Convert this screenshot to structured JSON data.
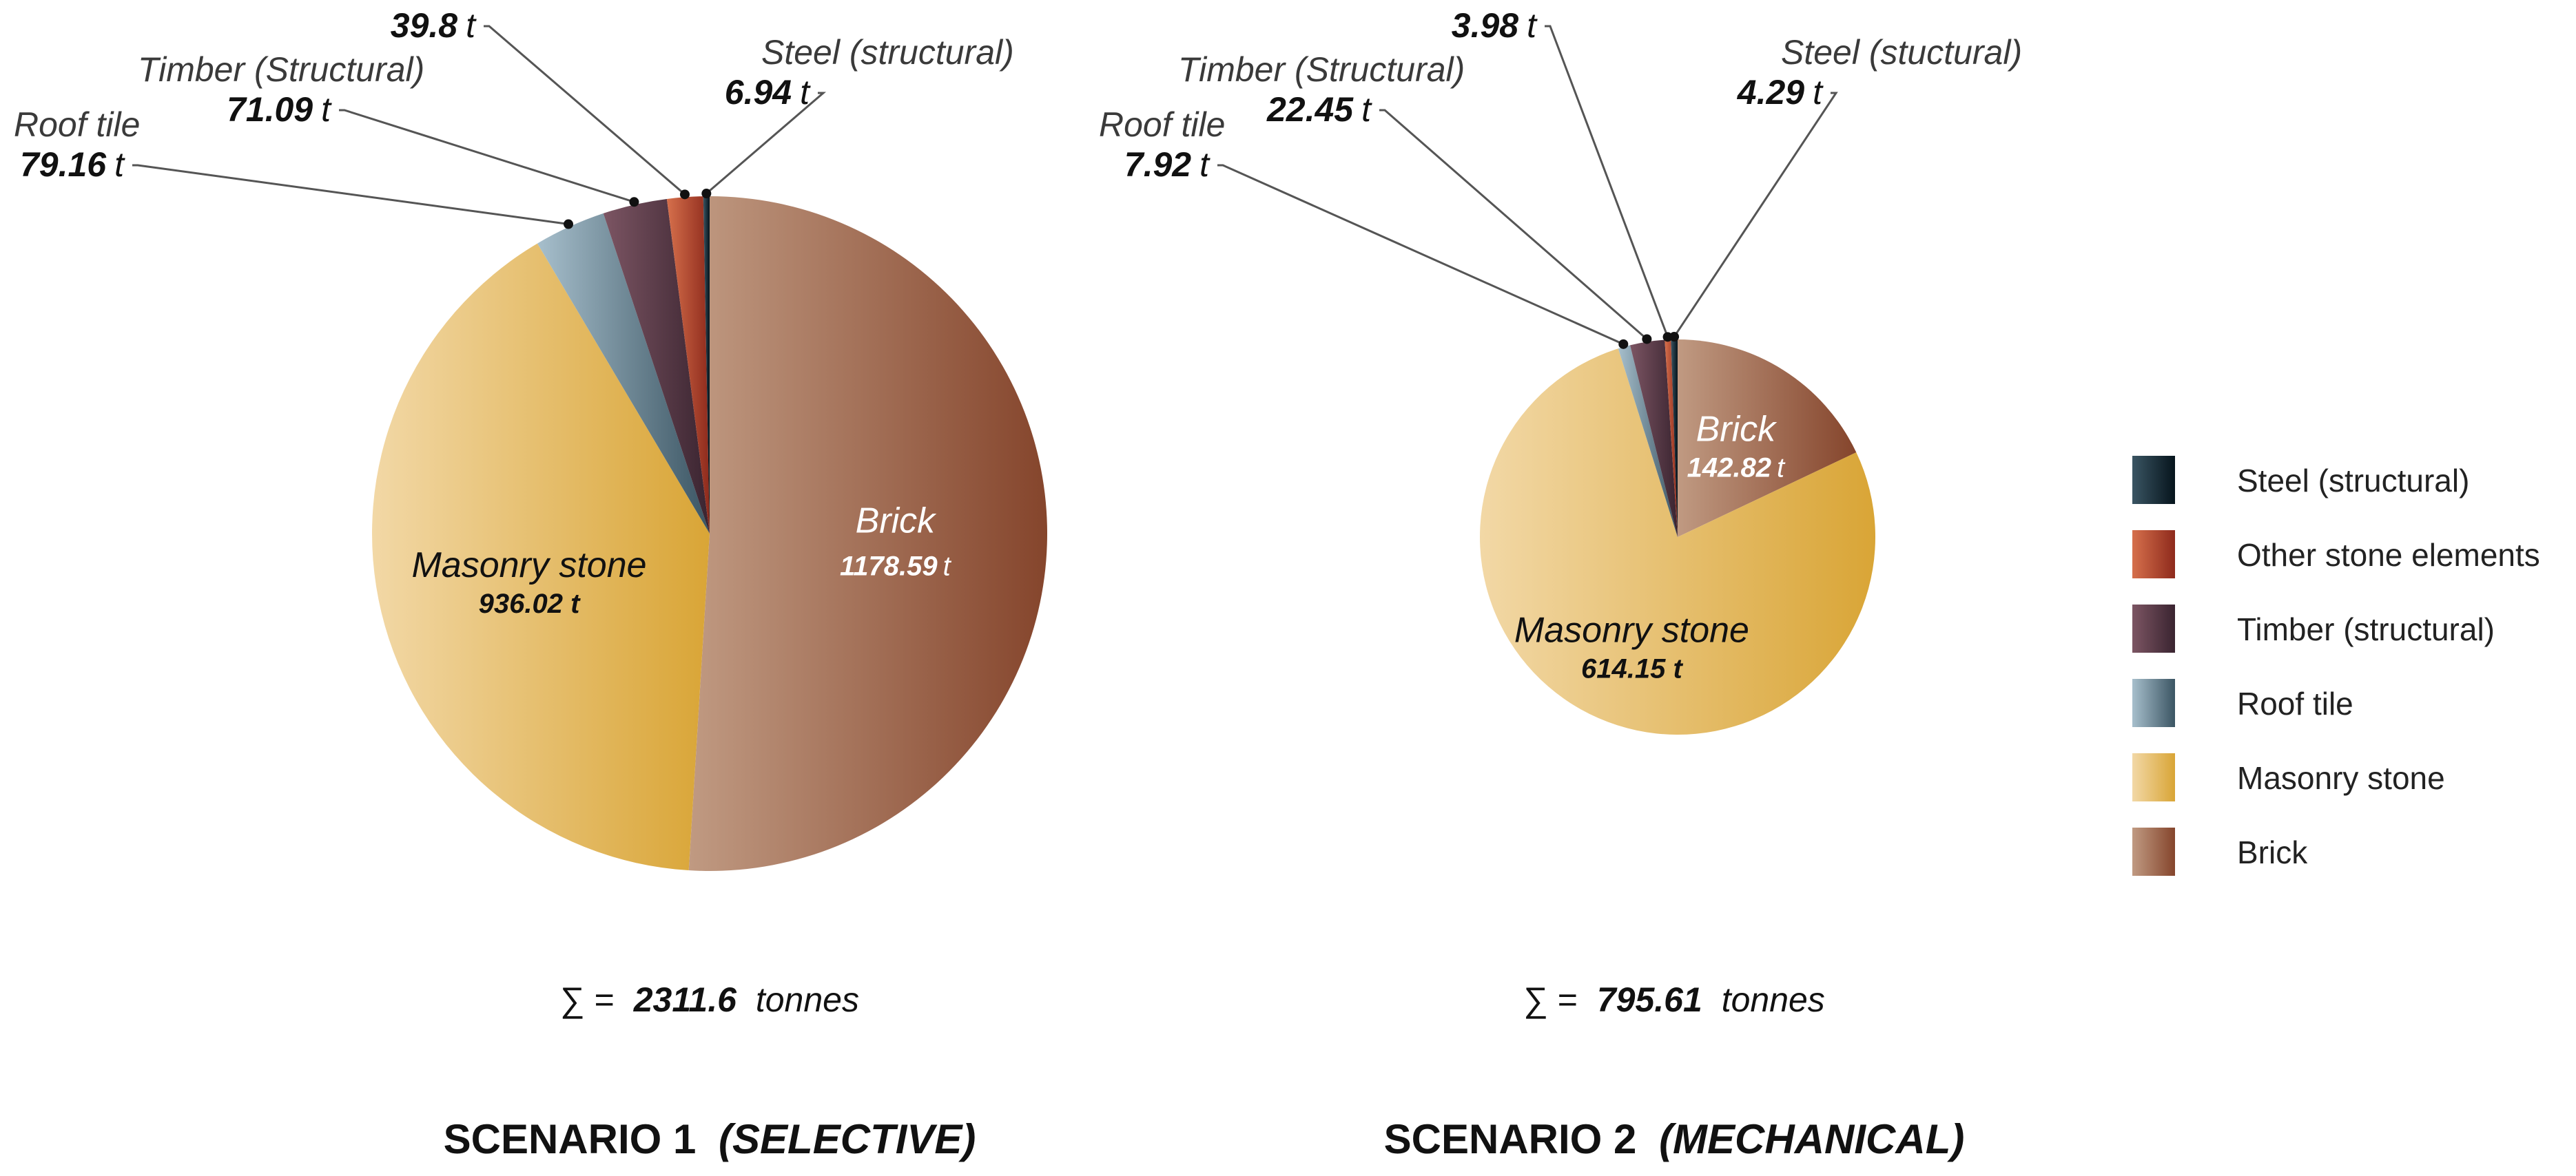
{
  "chart_data": [
    {
      "type": "pie",
      "title": "SCENARIO 1",
      "subtitle": "(SELECTIVE)",
      "total": {
        "symbol": "∑ =",
        "value": "2311.6",
        "unit": "tonnes"
      },
      "slices": [
        {
          "key": "brick",
          "name": "Brick",
          "value": 1178.59,
          "value_text": "1178.59",
          "unit": "t",
          "label_style": "inside"
        },
        {
          "key": "masonry",
          "name": "Masonry stone",
          "value": 936.02,
          "value_text": "936.02 t",
          "unit": "",
          "label_style": "inside"
        },
        {
          "key": "roof",
          "name": "Roof tile",
          "value": 79.16,
          "value_text": "79.16",
          "unit": "t",
          "label_style": "leader"
        },
        {
          "key": "timber",
          "name": "Timber (Structural)",
          "value": 71.09,
          "value_text": "71.09",
          "unit": "t",
          "label_style": "leader"
        },
        {
          "key": "other",
          "name": "Other stone element",
          "value": 39.8,
          "value_text": "39.8",
          "unit": "t",
          "label_style": "leader"
        },
        {
          "key": "steel",
          "name": "Steel (structural)",
          "value": 6.94,
          "value_text": "6.94",
          "unit": "t",
          "label_style": "leader"
        }
      ]
    },
    {
      "type": "pie",
      "title": "SCENARIO 2",
      "subtitle": "(MECHANICAL)",
      "total": {
        "symbol": "∑ =",
        "value": "795.61",
        "unit": "tonnes"
      },
      "slices": [
        {
          "key": "brick",
          "name": "Brick",
          "value": 142.82,
          "value_text": "142.82",
          "unit": "t",
          "label_style": "inside"
        },
        {
          "key": "masonry",
          "name": "Masonry stone",
          "value": 614.15,
          "value_text": "614.15 t",
          "unit": "",
          "label_style": "inside"
        },
        {
          "key": "roof",
          "name": "Roof tile",
          "value": 7.92,
          "value_text": "7.92",
          "unit": "t",
          "label_style": "leader"
        },
        {
          "key": "timber",
          "name": "Timber (Structural)",
          "value": 22.45,
          "value_text": "22.45",
          "unit": "t",
          "label_style": "leader"
        },
        {
          "key": "other",
          "name": "Other stone element",
          "value": 3.98,
          "value_text": "3.98",
          "unit": "t",
          "label_style": "leader"
        },
        {
          "key": "steel",
          "name": "Steel (stuctural)",
          "value": 4.29,
          "value_text": "4.29",
          "unit": "t",
          "label_style": "leader"
        }
      ]
    }
  ],
  "legend": {
    "placement": "right",
    "items": [
      {
        "key": "steel",
        "label": "Steel (structural)"
      },
      {
        "key": "other",
        "label": "Other stone elements"
      },
      {
        "key": "timber",
        "label": "Timber (structural)"
      },
      {
        "key": "roof",
        "label": "Roof tile"
      },
      {
        "key": "masonry",
        "label": "Masonry stone"
      },
      {
        "key": "brick",
        "label": "Brick"
      }
    ]
  },
  "colors": {
    "brick": {
      "light": "#c09a82",
      "dark": "#85452c"
    },
    "masonry": {
      "light": "#f2d8a6",
      "dark": "#d9a536"
    },
    "roof": {
      "light": "#a7bfcc",
      "dark": "#3b5563"
    },
    "timber": {
      "light": "#7c5563",
      "dark": "#3a2430"
    },
    "other": {
      "light": "#d6704c",
      "dark": "#8e2a1c"
    },
    "steel": {
      "light": "#3a5563",
      "dark": "#06141c"
    }
  }
}
